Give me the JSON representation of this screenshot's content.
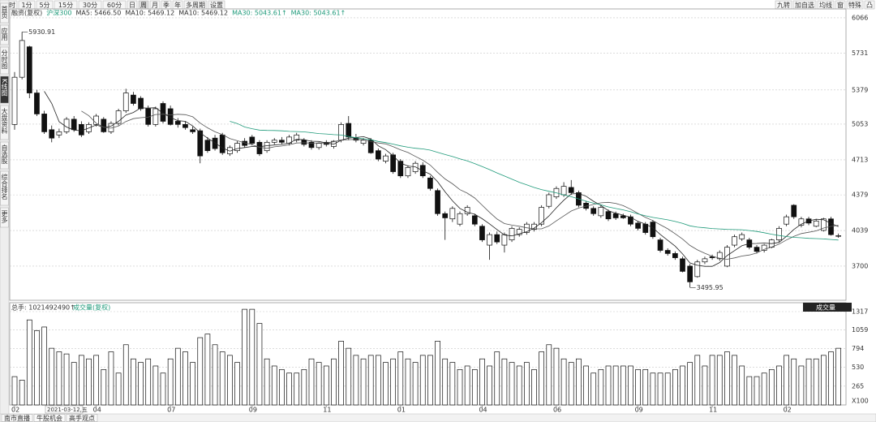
{
  "toolbar": {
    "left": [
      "分时",
      "1分",
      "5分",
      "15分",
      "30分",
      "60分",
      "日",
      "周",
      "月",
      "季",
      "年",
      "多周期",
      "设置"
    ],
    "right": [
      "九转",
      "加自选",
      "均线",
      "窗",
      "特殊",
      "凸"
    ]
  },
  "sidebar": [
    "首页",
    "应用",
    "分时图",
    "K线图",
    "大盘资料",
    "自选股",
    "综合排名",
    "更多"
  ],
  "chart_data": {
    "type": "candlestick",
    "index_name": "融资(复权)",
    "benchmark": "沪深300",
    "ma_labels": [
      "MA5: 5466.50",
      "MA10: 5469.12",
      "MA10: 5469.12",
      "MA30: 5043.61↑",
      "MA30: 5043.61↑"
    ],
    "categories": [
      "02",
      null,
      null,
      null,
      null,
      null,
      null,
      null,
      null,
      null,
      null,
      "04",
      null,
      null,
      null,
      null,
      null,
      null,
      null,
      null,
      null,
      "07",
      null,
      null,
      null,
      null,
      null,
      null,
      null,
      null,
      null,
      null,
      "09",
      null,
      null,
      null,
      null,
      null,
      null,
      null,
      null,
      null,
      "11",
      null,
      null,
      null,
      null,
      null,
      null,
      null,
      null,
      null,
      "01",
      null,
      null,
      null,
      null,
      null,
      null,
      null,
      null,
      null,
      null,
      "04",
      null,
      null,
      null,
      null,
      null,
      null,
      null,
      null,
      null,
      "06",
      null,
      null,
      null,
      null,
      null,
      null,
      null,
      null,
      null,
      null,
      "09",
      null,
      null,
      null,
      null,
      null,
      null,
      null,
      null,
      null,
      "11",
      null,
      null,
      null,
      null,
      null,
      null,
      null,
      null,
      null,
      "02",
      null,
      null,
      null,
      null,
      null,
      null,
      null
    ],
    "open": [
      5050,
      5500,
      5790,
      5350,
      5150,
      5000,
      4950,
      4980,
      5100,
      5050,
      4980,
      5050,
      5100,
      4980,
      5060,
      5180,
      5330,
      5300,
      5200,
      5050,
      5250,
      5200,
      5080,
      5050,
      5000,
      4990,
      4900,
      4920,
      4950,
      4770,
      4800,
      4890,
      4930,
      4880,
      4800,
      4880,
      4900,
      4870,
      4900,
      4900,
      4880,
      4830,
      4880,
      4840,
      4900,
      5060,
      4920,
      4870,
      4900,
      4800,
      4700,
      4760,
      4700,
      4560,
      4600,
      4660,
      4540,
      4420,
      4200,
      4150,
      4100,
      4200,
      4180,
      4080,
      3900,
      4000,
      3900,
      3950,
      4000,
      4020,
      4050,
      4100,
      4270,
      4360,
      4380,
      4450,
      4400,
      4300,
      4250,
      4180,
      4220,
      4200,
      4180,
      4170,
      4110,
      4100,
      4120,
      3950,
      3850,
      3820,
      3770,
      3700,
      3600,
      3740,
      3790,
      3770,
      3700,
      3900,
      3960,
      3950,
      3880,
      3850,
      3880,
      3950,
      4100,
      4280,
      4090,
      4150,
      4080,
      4040,
      4150,
      3990
    ],
    "high": [
      5550,
      5930.91,
      5800,
      5380,
      5180,
      5040,
      5010,
      5120,
      5130,
      5080,
      5070,
      5150,
      5120,
      5080,
      5200,
      5390,
      5360,
      5320,
      5230,
      5220,
      5270,
      5230,
      5110,
      5080,
      5030,
      5010,
      4930,
      4950,
      4970,
      4850,
      4890,
      4920,
      4950,
      4900,
      4900,
      4920,
      4930,
      4950,
      4970,
      4920,
      4900,
      4880,
      4900,
      4900,
      5070,
      5130,
      4960,
      4920,
      4920,
      4820,
      4770,
      4780,
      4720,
      4660,
      4700,
      4690,
      4560,
      4440,
      4220,
      4270,
      4220,
      4280,
      4200,
      4100,
      4020,
      4030,
      4020,
      4080,
      4070,
      4120,
      4120,
      4280,
      4400,
      4460,
      4500,
      4520,
      4420,
      4320,
      4270,
      4280,
      4240,
      4220,
      4200,
      4190,
      4130,
      4120,
      4140,
      3970,
      3870,
      3840,
      3790,
      3720,
      3760,
      3790,
      3810,
      3850,
      3900,
      4000,
      4020,
      3970,
      3900,
      3910,
      3960,
      4080,
      4190,
      4290,
      4170,
      4170,
      4150,
      4160,
      4170,
      4010
    ],
    "low": [
      5000,
      5480,
      5300,
      5130,
      4960,
      4880,
      4920,
      4960,
      4980,
      4930,
      4960,
      5030,
      4970,
      4960,
      5040,
      5160,
      5230,
      5180,
      5030,
      5030,
      5060,
      5040,
      5020,
      5000,
      4960,
      4680,
      4780,
      4800,
      4760,
      4750,
      4780,
      4830,
      4850,
      4750,
      4780,
      4860,
      4860,
      4850,
      4880,
      4840,
      4810,
      4810,
      4840,
      4820,
      4880,
      4900,
      4880,
      4850,
      4770,
      4700,
      4680,
      4580,
      4540,
      4540,
      4580,
      4540,
      4420,
      4180,
      3950,
      4120,
      4080,
      4180,
      4080,
      3930,
      3760,
      3910,
      3830,
      3930,
      3980,
      4000,
      4030,
      4080,
      4250,
      4340,
      4360,
      4380,
      4260,
      4230,
      4180,
      4160,
      4130,
      4140,
      4150,
      4080,
      4040,
      4000,
      3960,
      3830,
      3800,
      3760,
      3640,
      3495.95,
      3590,
      3720,
      3760,
      3750,
      3690,
      3880,
      3940,
      3860,
      3820,
      3830,
      3870,
      3930,
      4080,
      4150,
      4070,
      4090,
      4070,
      4030,
      3990,
      3970
    ],
    "close": [
      5500,
      5850,
      5350,
      5150,
      4980,
      4920,
      4980,
      5100,
      5000,
      4950,
      5050,
      5130,
      4980,
      5060,
      5180,
      5350,
      5250,
      5200,
      5050,
      5200,
      5080,
      5050,
      5050,
      5020,
      4980,
      4750,
      4800,
      4820,
      4780,
      4830,
      4870,
      4850,
      4870,
      4770,
      4880,
      4900,
      4880,
      4930,
      4950,
      4860,
      4830,
      4870,
      4860,
      4890,
      5050,
      4930,
      4900,
      4900,
      4780,
      4720,
      4750,
      4600,
      4560,
      4640,
      4680,
      4560,
      4440,
      4200,
      4160,
      4250,
      4200,
      4260,
      4100,
      3950,
      4000,
      3930,
      4000,
      4060,
      4050,
      4100,
      4100,
      4260,
      4380,
      4440,
      4460,
      4400,
      4280,
      4250,
      4200,
      4260,
      4150,
      4160,
      4160,
      4100,
      4060,
      4020,
      3980,
      3850,
      3820,
      3780,
      3650,
      3550,
      3740,
      3770,
      3780,
      3830,
      3880,
      3980,
      4000,
      3880,
      3840,
      3900,
      3950,
      4060,
      4170,
      4170,
      4150,
      4110,
      4130,
      4150,
      4000,
      3990
    ],
    "ylim": [
      3390,
      6120
    ],
    "yticks": [
      6066,
      5731,
      5379,
      5053,
      4713,
      4379,
      4039,
      3700
    ],
    "annotations": [
      5930.91,
      3495.95
    ],
    "cursor_date": "2021-03-12,五",
    "ma_colors": [
      "#222222",
      "#555555",
      "#1f9a7a"
    ],
    "volume": {
      "title": "总手: 1021492490↑",
      "label": "成交量(复权)",
      "selector": "成交量",
      "unit": "X100",
      "values": [
        400,
        350,
        1200,
        1050,
        1100,
        800,
        750,
        720,
        600,
        700,
        650,
        700,
        500,
        750,
        450,
        850,
        650,
        600,
        650,
        550,
        450,
        650,
        800,
        750,
        600,
        950,
        1000,
        850,
        750,
        700,
        600,
        1350,
        1350,
        1150,
        650,
        550,
        500,
        450,
        450,
        500,
        650,
        600,
        550,
        650,
        900,
        800,
        700,
        650,
        700,
        700,
        600,
        650,
        750,
        650,
        600,
        700,
        700,
        900,
        650,
        600,
        500,
        550,
        500,
        650,
        550,
        750,
        650,
        600,
        550,
        600,
        500,
        750,
        850,
        800,
        650,
        600,
        650,
        550,
        450,
        500,
        550,
        550,
        550,
        550,
        500,
        500,
        450,
        450,
        450,
        500,
        550,
        600,
        700,
        550,
        700,
        700,
        750,
        700,
        550,
        400,
        400,
        450,
        500,
        550,
        700,
        650,
        550,
        650,
        650,
        700,
        750,
        800
      ],
      "ylim": [
        0,
        1420
      ],
      "yticks": [
        1317,
        1059,
        794,
        530,
        265
      ]
    }
  },
  "bottom_tabs": [
    "南市直播",
    "牛股机会",
    "高手观点"
  ]
}
